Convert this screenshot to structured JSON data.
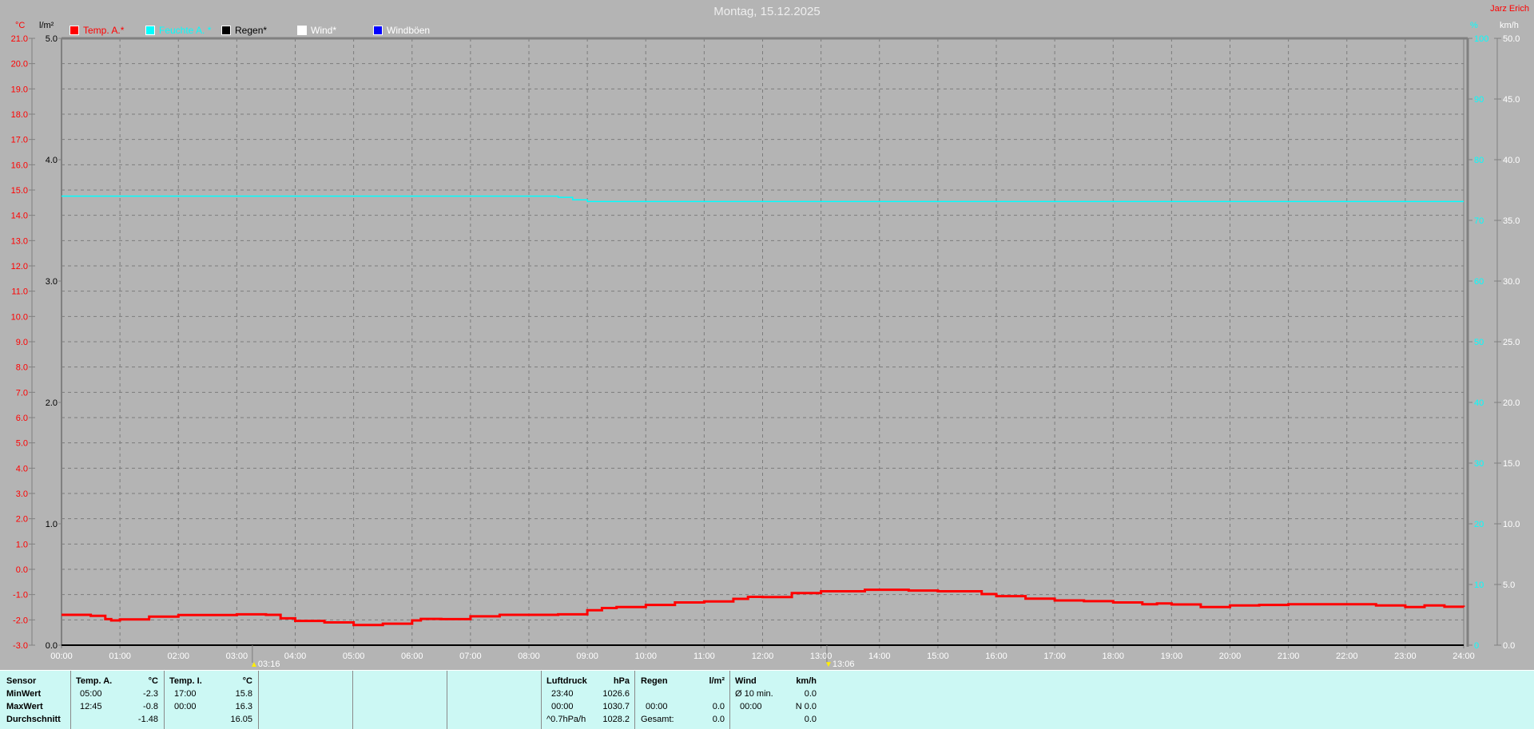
{
  "header": {
    "title": "Montag, 15.12.2025",
    "owner": "Jarz Erich"
  },
  "legend": [
    {
      "label": "Temp. A.*",
      "color": "#ff0000"
    },
    {
      "label": "Feuchte A. *",
      "color": "#00ffff"
    },
    {
      "label": "Regen*",
      "color": "#000000"
    },
    {
      "label": "Wind*",
      "color": "#ffffff"
    },
    {
      "label": "Windböen",
      "color": "#0000ff"
    }
  ],
  "axes": {
    "temp_unit": "°C",
    "rain_unit": "l/m²",
    "hum_unit": "%",
    "wind_unit": "km/h"
  },
  "markers": [
    {
      "time": "03:16",
      "icon": "moonrise-icon"
    },
    {
      "time": "13:06",
      "icon": "moonset-icon"
    }
  ],
  "chart_data": {
    "type": "line",
    "title": "Montag, 15.12.2025",
    "x_ticks": [
      "00:00",
      "01:00",
      "02:00",
      "03:00",
      "04:00",
      "05:00",
      "06:00",
      "07:00",
      "08:00",
      "09:00",
      "10:00",
      "11:00",
      "12:00",
      "13:00",
      "14:00",
      "15:00",
      "16:00",
      "17:00",
      "18:00",
      "19:00",
      "20:00",
      "21:00",
      "22:00",
      "23:00",
      "24:00"
    ],
    "xlim": [
      0,
      24
    ],
    "y_axes": {
      "temp": {
        "unit": "°C",
        "range": [
          -3.0,
          21.0
        ],
        "step": 1.0,
        "color": "#ff0000"
      },
      "rain": {
        "unit": "l/m²",
        "range": [
          0.0,
          5.0
        ],
        "step": 1.0,
        "color": "#000000"
      },
      "humidity": {
        "unit": "%",
        "range": [
          0,
          100
        ],
        "step": 10,
        "color": "#00ffff"
      },
      "wind": {
        "unit": "km/h",
        "range": [
          0.0,
          50.0
        ],
        "step": 5.0,
        "color": "#ffffff"
      }
    },
    "grid": true,
    "series": [
      {
        "name": "Temp. A.*",
        "axis": "temp",
        "color": "#ff0000",
        "x": [
          0,
          0.5,
          0.75,
          0.85,
          1,
          1.5,
          2,
          3,
          3.5,
          3.75,
          4,
          4.5,
          5,
          5.5,
          6,
          6.15,
          6.5,
          7,
          7.5,
          8,
          8.5,
          9,
          9.25,
          9.5,
          10,
          10.5,
          11,
          11.5,
          11.75,
          12,
          12.5,
          13,
          13.75,
          14,
          14.5,
          15,
          15.4,
          15.75,
          16,
          16.5,
          17,
          17.5,
          18,
          18.5,
          18.75,
          19,
          19.5,
          20,
          20.5,
          21,
          22,
          22.5,
          23,
          23.33,
          23.67,
          24
        ],
        "y": [
          -1.8,
          -1.84,
          -1.97,
          -2.02,
          -1.98,
          -1.87,
          -1.81,
          -1.78,
          -1.8,
          -1.94,
          -2.04,
          -2.1,
          -2.2,
          -2.15,
          -2.02,
          -1.96,
          -1.97,
          -1.86,
          -1.8,
          -1.8,
          -1.78,
          -1.62,
          -1.53,
          -1.49,
          -1.41,
          -1.31,
          -1.27,
          -1.17,
          -1.09,
          -1.1,
          -0.94,
          -0.87,
          -0.81,
          -0.81,
          -0.84,
          -0.87,
          -0.87,
          -0.98,
          -1.06,
          -1.16,
          -1.23,
          -1.26,
          -1.31,
          -1.38,
          -1.35,
          -1.39,
          -1.49,
          -1.43,
          -1.41,
          -1.38,
          -1.38,
          -1.43,
          -1.49,
          -1.43,
          -1.48,
          -1.49
        ]
      },
      {
        "name": "Feuchte A. *",
        "axis": "humidity",
        "color": "#00ffff",
        "x": [
          0,
          8.5,
          8.75,
          9,
          24
        ],
        "y": [
          74,
          73.8,
          73.4,
          73.1,
          73.1
        ]
      }
    ]
  },
  "table": {
    "row_labels": [
      "Sensor",
      "MinWert",
      "MaxWert",
      "Durchschnitt"
    ],
    "temp_a": {
      "title": "Temp. A.",
      "unit": "°C",
      "min_time": "05:00",
      "min": "-2.3",
      "max_time": "12:45",
      "max": "-0.8",
      "avg": "-1.48"
    },
    "temp_i": {
      "title": "Temp. I.",
      "unit": "°C",
      "min_time": "17:00",
      "min": "15.8",
      "max_time": "00:00",
      "max": "16.3",
      "avg": "16.05"
    },
    "pressure": {
      "title": "Luftdruck",
      "unit": "hPa",
      "min_time": "23:40",
      "min": "1026.6",
      "max_time": "00:00",
      "max": "1030.7",
      "trend": "^0.7hPa/h",
      "avg": "1028.2"
    },
    "rain": {
      "title": "Regen",
      "unit": "l/m²",
      "max_time": "00:00",
      "max": "0.0",
      "total_label": "Gesamt:",
      "total": "0.0"
    },
    "wind": {
      "title": "Wind",
      "unit": "km/h",
      "avg_label": "Ø 10 min.",
      "avg": "0.0",
      "max_time": "00:00",
      "max": "N 0.0",
      "last": "0.0"
    }
  }
}
